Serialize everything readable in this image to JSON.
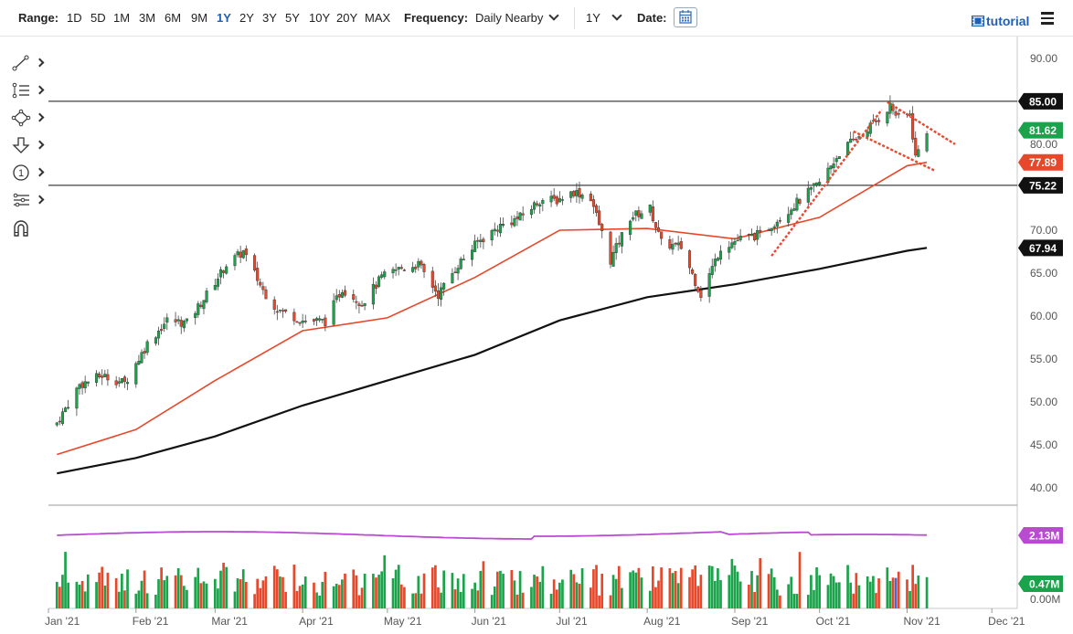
{
  "toolbar": {
    "range_label": "Range:",
    "ranges": [
      "1D",
      "5D",
      "1M",
      "3M",
      "6M",
      "9M",
      "1Y",
      "2Y",
      "3Y",
      "5Y",
      "10Y",
      "20Y",
      "MAX"
    ],
    "active_range": "1Y",
    "frequency_label": "Frequency:",
    "frequency_value": "Daily Nearby",
    "period_value": "1Y",
    "date_label": "Date:",
    "tutorial_label": "tutorial",
    "accent_color": "#1f5fb4"
  },
  "tools": [
    "line-draw-icon",
    "fibonacci-icon",
    "shapes-icon",
    "arrow-down-icon",
    "annotation-number-icon",
    "pattern-icon",
    "magnet-icon"
  ],
  "annotation_number": "1",
  "chart_data": {
    "type": "candlestick",
    "price_axis": {
      "ticks": [
        "90.00",
        "85.00",
        "80.00",
        "75.00",
        "70.00",
        "65.00",
        "60.00",
        "55.00",
        "50.00",
        "45.00",
        "40.00"
      ],
      "range": [
        38,
        92
      ]
    },
    "volume_axis": {
      "ticks": [
        "2.13M",
        "0.47M",
        "0.00M"
      ]
    },
    "x_labels": [
      "Jan '21",
      "Feb '21",
      "Mar '21",
      "Apr '21",
      "May '21",
      "Jun '21",
      "Jul '21",
      "Aug '21",
      "Sep '21",
      "Oct '21",
      "Nov '21",
      "Dec '21"
    ],
    "x_range": [
      "2021-01-01",
      "2021-12-10"
    ],
    "badges": [
      {
        "label": "85.00",
        "value": 85.0,
        "color": "#111111",
        "meaning": "horizontal resistance line"
      },
      {
        "label": "81.62",
        "value": 81.62,
        "color": "#1aa34a",
        "meaning": "last price"
      },
      {
        "label": "77.89",
        "value": 77.89,
        "color": "#e8472a",
        "meaning": "50-day moving average"
      },
      {
        "label": "75.22",
        "value": 75.22,
        "color": "#111111",
        "meaning": "horizontal support line"
      },
      {
        "label": "67.94",
        "value": 67.94,
        "color": "#111111",
        "meaning": "200-day moving average"
      }
    ],
    "volume_badges": [
      {
        "label": "2.13M",
        "color": "#b84bd1",
        "meaning": "average volume"
      },
      {
        "label": "0.47M",
        "color": "#1aa34a",
        "meaning": "last volume"
      }
    ],
    "horizontal_lines": [
      85.0,
      75.22
    ],
    "close_series": [
      [
        "2021-01-04",
        47.6
      ],
      [
        "2021-01-12",
        52.0
      ],
      [
        "2021-01-20",
        53.1
      ],
      [
        "2021-01-28",
        52.2
      ],
      [
        "2021-02-05",
        56.8
      ],
      [
        "2021-02-12",
        59.5
      ],
      [
        "2021-02-19",
        59.2
      ],
      [
        "2021-02-26",
        62.5
      ],
      [
        "2021-03-05",
        66.0
      ],
      [
        "2021-03-11",
        67.5
      ],
      [
        "2021-03-18",
        63.0
      ],
      [
        "2021-03-23",
        60.8
      ],
      [
        "2021-04-01",
        59.5
      ],
      [
        "2021-04-09",
        59.4
      ],
      [
        "2021-04-15",
        63.2
      ],
      [
        "2021-04-22",
        61.5
      ],
      [
        "2021-04-29",
        64.5
      ],
      [
        "2021-05-05",
        65.5
      ],
      [
        "2021-05-12",
        66.0
      ],
      [
        "2021-05-19",
        62.5
      ],
      [
        "2021-05-26",
        66.0
      ],
      [
        "2021-06-02",
        68.6
      ],
      [
        "2021-06-10",
        70.5
      ],
      [
        "2021-06-17",
        71.5
      ],
      [
        "2021-06-24",
        73.5
      ],
      [
        "2021-06-30",
        73.5
      ],
      [
        "2021-07-06",
        74.5
      ],
      [
        "2021-07-12",
        73.8
      ],
      [
        "2021-07-19",
        66.5
      ],
      [
        "2021-07-26",
        71.5
      ],
      [
        "2021-08-02",
        72.5
      ],
      [
        "2021-08-06",
        68.5
      ],
      [
        "2021-08-13",
        68.0
      ],
      [
        "2021-08-20",
        62.5
      ],
      [
        "2021-08-27",
        68.0
      ],
      [
        "2021-09-03",
        69.0
      ],
      [
        "2021-09-10",
        69.5
      ],
      [
        "2021-09-17",
        71.5
      ],
      [
        "2021-09-24",
        73.5
      ],
      [
        "2021-10-01",
        75.5
      ],
      [
        "2021-10-08",
        79.0
      ],
      [
        "2021-10-15",
        81.0
      ],
      [
        "2021-10-22",
        83.0
      ],
      [
        "2021-10-26",
        84.5
      ],
      [
        "2021-10-29",
        83.0
      ],
      [
        "2021-11-02",
        83.5
      ],
      [
        "2021-11-04",
        78.5
      ],
      [
        "2021-11-08",
        81.62
      ]
    ],
    "ma50_series": [
      [
        "2021-01-04",
        43.9
      ],
      [
        "2021-02-01",
        46.8
      ],
      [
        "2021-03-01",
        52.5
      ],
      [
        "2021-04-01",
        58.3
      ],
      [
        "2021-05-01",
        59.8
      ],
      [
        "2021-06-01",
        64.5
      ],
      [
        "2021-07-01",
        70.0
      ],
      [
        "2021-08-01",
        70.2
      ],
      [
        "2021-09-01",
        69.0
      ],
      [
        "2021-10-01",
        71.5
      ],
      [
        "2021-11-01",
        77.5
      ],
      [
        "2021-11-08",
        77.89
      ]
    ],
    "ma200_series": [
      [
        "2021-01-04",
        41.7
      ],
      [
        "2021-02-01",
        43.5
      ],
      [
        "2021-03-01",
        46.0
      ],
      [
        "2021-04-01",
        49.6
      ],
      [
        "2021-05-01",
        52.5
      ],
      [
        "2021-06-01",
        55.5
      ],
      [
        "2021-07-01",
        59.5
      ],
      [
        "2021-08-01",
        62.2
      ],
      [
        "2021-09-01",
        63.7
      ],
      [
        "2021-10-01",
        65.5
      ],
      [
        "2021-11-01",
        67.6
      ],
      [
        "2021-11-08",
        67.94
      ]
    ],
    "trend_lines": [
      {
        "name": "channel-upper",
        "from": [
          "2021-10-25",
          84.9
        ],
        "to": [
          "2021-11-18",
          80.0
        ],
        "color": "#e8472a"
      },
      {
        "name": "channel-lower",
        "from": [
          "2021-10-13",
          81.5
        ],
        "to": [
          "2021-11-11",
          76.9
        ],
        "color": "#e8472a"
      },
      {
        "name": "rising-trend",
        "from": [
          "2021-09-14",
          67.0
        ],
        "to": [
          "2021-10-23",
          84.0
        ],
        "color": "#e8472a"
      }
    ],
    "colors": {
      "up": "#1aa34a",
      "down": "#e8472a",
      "ma200": "#111111",
      "ma50": "#e8472a",
      "avg_volume": "#b84bd1",
      "volume_highlight": "#3a6fd8"
    },
    "grid": false
  }
}
